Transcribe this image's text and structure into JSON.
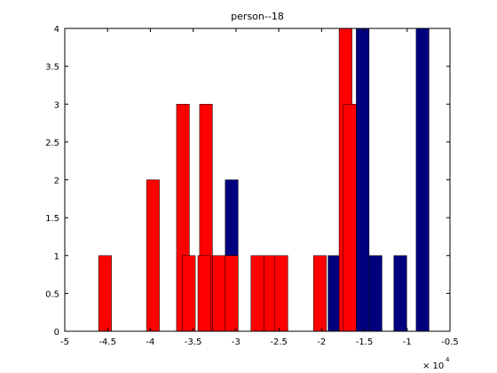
{
  "chart_data": {
    "type": "bar",
    "title": "person--18",
    "xlabel": "",
    "ylabel": "",
    "xlim": [
      -5,
      -0.5
    ],
    "ylim": [
      0,
      4
    ],
    "x_exponent_label": "× 10",
    "x_exponent_power": "4",
    "grid": false,
    "xticks": [
      -5,
      -4.5,
      -4,
      -3.5,
      -3,
      -2.5,
      -2,
      -1.5,
      -1,
      -0.5
    ],
    "xtick_labels": [
      "-5",
      "-4.5",
      "-4",
      "-3.5",
      "-3",
      "-2.5",
      "-2",
      "-1.5",
      "-1",
      "-0.5"
    ],
    "yticks": [
      0,
      0.5,
      1,
      1.5,
      2,
      2.5,
      3,
      3.5,
      4
    ],
    "ytick_labels": [
      "0",
      "0.5",
      "1",
      "1.5",
      "2",
      "2.5",
      "3",
      "3.5",
      "4"
    ],
    "bar_width": 0.15,
    "series": [
      {
        "color": "#00007f",
        "bars": [
          {
            "x": -3.05,
            "y": 2
          },
          {
            "x": -1.85,
            "y": 1
          },
          {
            "x": -1.6,
            "y": 3
          },
          {
            "x": -1.52,
            "y": 4
          },
          {
            "x": -1.37,
            "y": 1
          },
          {
            "x": -1.08,
            "y": 1
          },
          {
            "x": -0.82,
            "y": 4
          }
        ]
      },
      {
        "color": "#ff0000",
        "bars": [
          {
            "x": -4.53,
            "y": 1
          },
          {
            "x": -3.97,
            "y": 2
          },
          {
            "x": -3.62,
            "y": 3
          },
          {
            "x": -3.55,
            "y": 1
          },
          {
            "x": -3.35,
            "y": 3
          },
          {
            "x": -3.37,
            "y": 1
          },
          {
            "x": -3.2,
            "y": 1
          },
          {
            "x": -3.05,
            "y": 1
          },
          {
            "x": -2.75,
            "y": 1
          },
          {
            "x": -2.6,
            "y": 1
          },
          {
            "x": -2.47,
            "y": 1
          },
          {
            "x": -2.02,
            "y": 1
          },
          {
            "x": -1.72,
            "y": 4
          },
          {
            "x": -1.67,
            "y": 3
          }
        ]
      }
    ]
  }
}
